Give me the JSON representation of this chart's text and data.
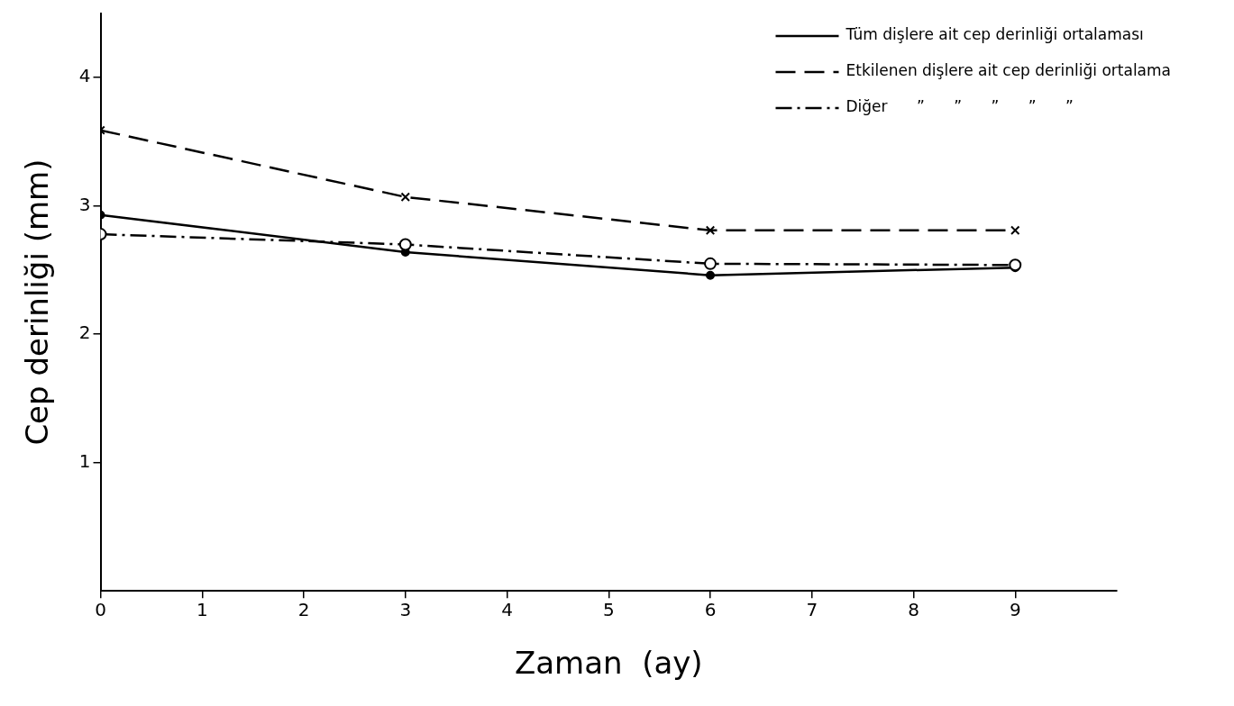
{
  "chart_data": {
    "type": "line",
    "xlabel": "Zaman  (ay)",
    "ylabel": "Cep derinliği (mm)",
    "x": [
      0,
      3,
      6,
      9
    ],
    "series": [
      {
        "name": "Tüm dişlere ait cep derinliği ortalaması",
        "color": "#000000",
        "values": [
          2.93,
          2.64,
          2.46,
          2.52
        ],
        "marker": "circle",
        "line_style": "solid"
      },
      {
        "name": "Etkilenen dişlere ait cep derinliği ortalama",
        "color": "#000000",
        "values": [
          3.59,
          3.07,
          2.81,
          2.81
        ],
        "marker": "cross",
        "line_style": "dashed"
      },
      {
        "name": "Diğer      ”      ”      ”      ”      ”",
        "color": "#000000",
        "values": [
          2.78,
          2.7,
          2.55,
          2.54
        ],
        "marker": "open-circle",
        "line_style": "dashdot"
      }
    ],
    "xlim": [
      0,
      10
    ],
    "xticks": [
      0,
      1,
      2,
      3,
      4,
      5,
      6,
      7,
      8,
      9
    ],
    "ylim": [
      0,
      4.5
    ],
    "yticks": [
      1,
      2,
      3,
      4
    ],
    "grid": false,
    "legend": "top right"
  }
}
